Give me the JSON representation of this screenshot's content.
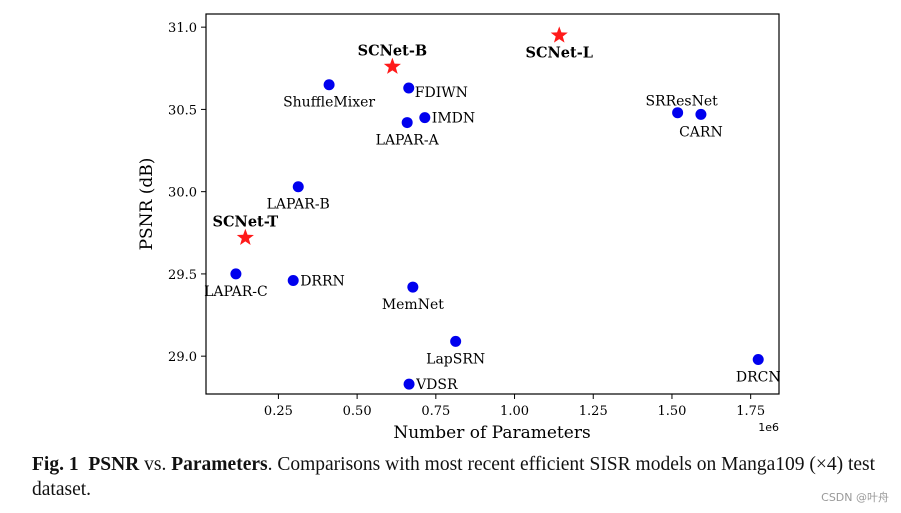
{
  "chart_data": {
    "type": "scatter",
    "xlabel": "Number of Parameters",
    "ylabel": "PSNR (dB)",
    "x_multiplier_label": "1e6",
    "xlim": [
      0.02,
      1.84
    ],
    "ylim": [
      28.77,
      31.08
    ],
    "xticks": [
      0.25,
      0.5,
      0.75,
      1.0,
      1.25,
      1.5,
      1.75
    ],
    "xtick_labels": [
      "0.25",
      "0.50",
      "0.75",
      "1.00",
      "1.25",
      "1.50",
      "1.75"
    ],
    "yticks": [
      29.0,
      29.5,
      30.0,
      30.5,
      31.0
    ],
    "ytick_labels": [
      "29.0",
      "29.5",
      "30.0",
      "30.5",
      "31.0"
    ],
    "grid": false,
    "colors": {
      "baseline": "#0000ee",
      "ours": "#ff1a1a"
    },
    "points": [
      {
        "label": "ShuffleMixer",
        "x": 0.411,
        "y": 30.65,
        "group": "baseline",
        "anchor": "below"
      },
      {
        "label": "FDIWN",
        "x": 0.664,
        "y": 30.63,
        "group": "baseline",
        "anchor": "right-below"
      },
      {
        "label": "IMDN",
        "x": 0.715,
        "y": 30.45,
        "group": "baseline",
        "anchor": "right"
      },
      {
        "label": "LAPAR-A",
        "x": 0.659,
        "y": 30.42,
        "group": "baseline",
        "anchor": "below"
      },
      {
        "label": "SRResNet",
        "x": 1.518,
        "y": 30.48,
        "group": "baseline",
        "anchor": "above-left"
      },
      {
        "label": "CARN",
        "x": 1.592,
        "y": 30.47,
        "group": "baseline",
        "anchor": "below"
      },
      {
        "label": "LAPAR-B",
        "x": 0.313,
        "y": 30.03,
        "group": "baseline",
        "anchor": "below"
      },
      {
        "label": "LAPAR-C",
        "x": 0.115,
        "y": 29.5,
        "group": "baseline",
        "anchor": "below"
      },
      {
        "label": "DRRN",
        "x": 0.297,
        "y": 29.46,
        "group": "baseline",
        "anchor": "right"
      },
      {
        "label": "MemNet",
        "x": 0.677,
        "y": 29.42,
        "group": "baseline",
        "anchor": "below"
      },
      {
        "label": "LapSRN",
        "x": 0.813,
        "y": 29.09,
        "group": "baseline",
        "anchor": "below"
      },
      {
        "label": "VDSR",
        "x": 0.665,
        "y": 28.83,
        "group": "baseline",
        "anchor": "right"
      },
      {
        "label": "DRCN",
        "x": 1.774,
        "y": 28.98,
        "group": "baseline",
        "anchor": "below"
      },
      {
        "label": "SCNet-B",
        "x": 0.612,
        "y": 30.76,
        "group": "ours",
        "anchor": "above"
      },
      {
        "label": "SCNet-L",
        "x": 1.142,
        "y": 30.95,
        "group": "ours",
        "anchor": "below"
      },
      {
        "label": "SCNet-T",
        "x": 0.145,
        "y": 29.72,
        "group": "ours",
        "anchor": "above"
      }
    ]
  },
  "caption": {
    "fig_label": "Fig. 1",
    "psnr": "PSNR",
    "vs": " vs. ",
    "parameters": "Parameters",
    "rest": ". Comparisons with most recent efficient SISR models on Manga109 (×4) test dataset."
  },
  "watermark": "CSDN @叶舟"
}
